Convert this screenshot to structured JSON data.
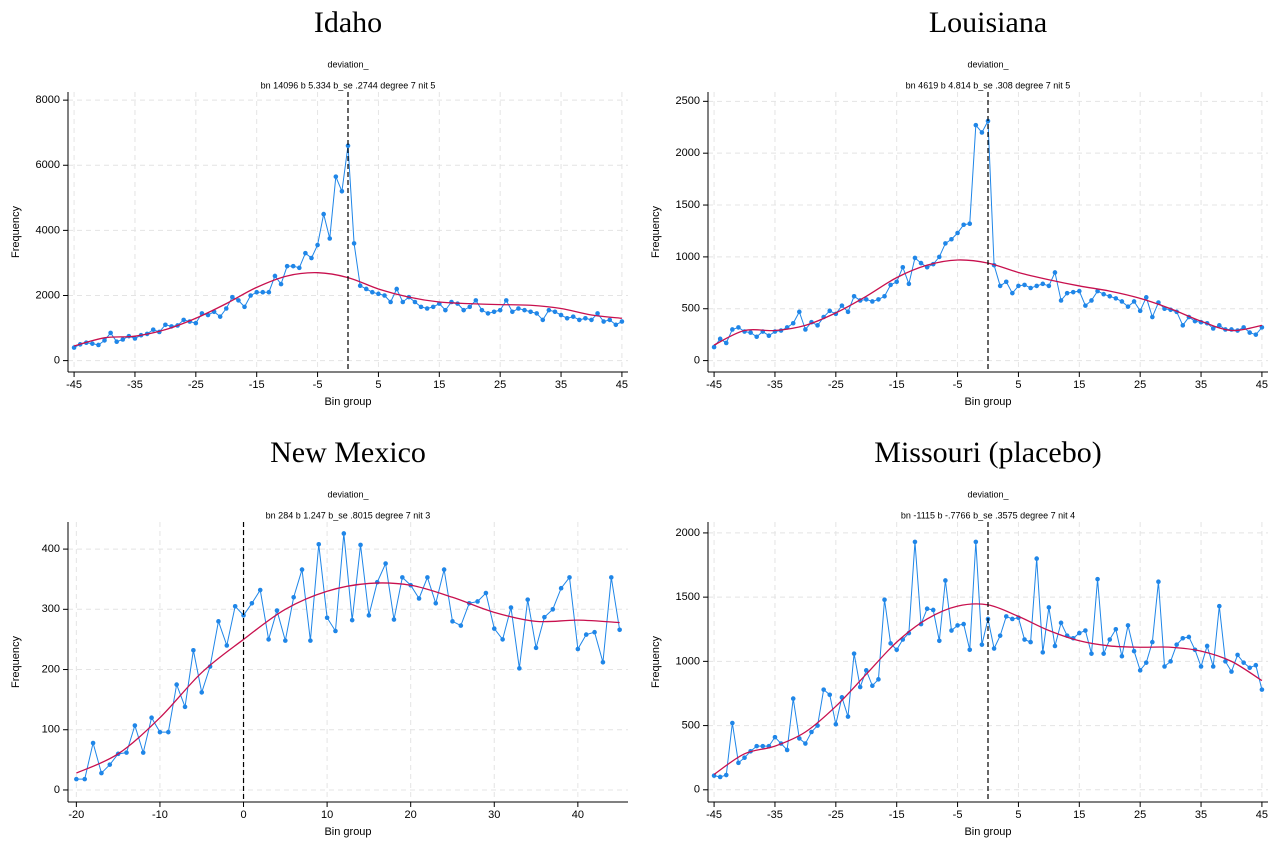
{
  "chart_data": [
    {
      "type": "line",
      "title": "Idaho",
      "subtitle": [
        "deviation_",
        "bn 14096 b 5.334 b_se .2744 degree 7 nit 5"
      ],
      "xlabel": "Bin group",
      "ylabel": "Frequency",
      "x": [
        -45,
        -44,
        -43,
        -42,
        -41,
        -40,
        -39,
        -38,
        -37,
        -36,
        -35,
        -34,
        -33,
        -32,
        -31,
        -30,
        -29,
        -28,
        -27,
        -26,
        -25,
        -24,
        -23,
        -22,
        -21,
        -20,
        -19,
        -18,
        -17,
        -16,
        -15,
        -14,
        -13,
        -12,
        -11,
        -10,
        -9,
        -8,
        -7,
        -6,
        -5,
        -4,
        -3,
        -2,
        -1,
        0,
        1,
        2,
        3,
        4,
        5,
        6,
        7,
        8,
        9,
        10,
        11,
        12,
        13,
        14,
        15,
        16,
        17,
        18,
        19,
        20,
        21,
        22,
        23,
        24,
        25,
        26,
        27,
        28,
        29,
        30,
        31,
        32,
        33,
        34,
        35,
        36,
        37,
        38,
        39,
        40,
        41,
        42,
        43,
        44,
        45
      ],
      "series": [
        {
          "color": "#1f86e8",
          "values": [
            400,
            500,
            550,
            520,
            480,
            620,
            850,
            580,
            650,
            750,
            680,
            780,
            820,
            950,
            880,
            1100,
            1050,
            1080,
            1250,
            1200,
            1150,
            1450,
            1400,
            1500,
            1350,
            1600,
            1950,
            1850,
            1650,
            2000,
            2100,
            2100,
            2100,
            2600,
            2350,
            2900,
            2900,
            2850,
            3300,
            3150,
            3550,
            4500,
            3750,
            5650,
            5200,
            6600,
            3600,
            2300,
            2200,
            2100,
            2050,
            2000,
            1800,
            2200,
            1800,
            1950,
            1800,
            1650,
            1600,
            1650,
            1750,
            1550,
            1800,
            1750,
            1550,
            1650,
            1850,
            1550,
            1450,
            1500,
            1550,
            1850,
            1500,
            1600,
            1550,
            1500,
            1450,
            1250,
            1550,
            1500,
            1400,
            1300,
            1350,
            1250,
            1300,
            1250,
            1450,
            1200,
            1250,
            1100,
            1200
          ]
        },
        {
          "color": "#c8104e",
          "x": [
            -45,
            -40,
            -35,
            -30,
            -25,
            -20,
            -15,
            -10,
            -5,
            0,
            5,
            10,
            15,
            20,
            25,
            30,
            35,
            40,
            45
          ],
          "values": [
            450,
            700,
            750,
            950,
            1300,
            1750,
            2250,
            2600,
            2700,
            2550,
            2200,
            1950,
            1800,
            1750,
            1720,
            1700,
            1600,
            1400,
            1300
          ]
        }
      ],
      "xlim": [
        -46,
        46
      ],
      "ylim": [
        -350,
        8250
      ],
      "xticks": [
        -45,
        -35,
        -25,
        -15,
        -5,
        5,
        15,
        25,
        35,
        45
      ],
      "yticks": [
        0,
        2000,
        4000,
        6000,
        8000
      ],
      "grid": true,
      "vline": 0
    },
    {
      "type": "line",
      "title": "Louisiana",
      "subtitle": [
        "deviation_",
        "bn 4619 b 4.814 b_se .308 degree 7 nit 5"
      ],
      "xlabel": "Bin group",
      "ylabel": "Frequency",
      "x": [
        -45,
        -44,
        -43,
        -42,
        -41,
        -40,
        -39,
        -38,
        -37,
        -36,
        -35,
        -34,
        -33,
        -32,
        -31,
        -30,
        -29,
        -28,
        -27,
        -26,
        -25,
        -24,
        -23,
        -22,
        -21,
        -20,
        -19,
        -18,
        -17,
        -16,
        -15,
        -14,
        -13,
        -12,
        -11,
        -10,
        -9,
        -8,
        -7,
        -6,
        -5,
        -4,
        -3,
        -2,
        -1,
        0,
        1,
        2,
        3,
        4,
        5,
        6,
        7,
        8,
        9,
        10,
        11,
        12,
        13,
        14,
        15,
        16,
        17,
        18,
        19,
        20,
        21,
        22,
        23,
        24,
        25,
        26,
        27,
        28,
        29,
        30,
        31,
        32,
        33,
        34,
        35,
        36,
        37,
        38,
        39,
        40,
        41,
        42,
        43,
        44,
        45
      ],
      "series": [
        {
          "color": "#1f86e8",
          "values": [
            130,
            210,
            170,
            300,
            320,
            280,
            270,
            230,
            280,
            240,
            280,
            290,
            320,
            360,
            470,
            300,
            370,
            340,
            420,
            480,
            450,
            530,
            470,
            620,
            580,
            590,
            570,
            590,
            620,
            730,
            760,
            900,
            740,
            990,
            940,
            900,
            930,
            1000,
            1130,
            1170,
            1230,
            1310,
            1320,
            2270,
            2200,
            2310,
            920,
            720,
            760,
            650,
            720,
            730,
            700,
            720,
            740,
            720,
            850,
            580,
            650,
            660,
            670,
            530,
            580,
            670,
            640,
            620,
            600,
            570,
            520,
            570,
            480,
            610,
            420,
            560,
            500,
            490,
            470,
            340,
            420,
            380,
            370,
            360,
            310,
            340,
            300,
            300,
            290,
            320,
            270,
            250,
            320
          ]
        },
        {
          "color": "#c8104e",
          "x": [
            -45,
            -40,
            -35,
            -30,
            -25,
            -20,
            -15,
            -10,
            -5,
            0,
            5,
            10,
            15,
            20,
            25,
            30,
            35,
            40,
            45
          ],
          "values": [
            150,
            290,
            290,
            340,
            460,
            620,
            800,
            920,
            970,
            940,
            850,
            780,
            720,
            670,
            600,
            500,
            380,
            290,
            340
          ]
        }
      ],
      "xlim": [
        -46,
        46
      ],
      "ylim": [
        -110,
        2590
      ],
      "xticks": [
        -45,
        -35,
        -25,
        -15,
        -5,
        5,
        15,
        25,
        35,
        45
      ],
      "yticks": [
        0,
        500,
        1000,
        1500,
        2000,
        2500
      ],
      "grid": true,
      "vline": 0
    },
    {
      "type": "line",
      "title": "New Mexico",
      "subtitle": [
        "deviation_",
        "bn 284 b 1.247 b_se .8015 degree 7 nit 3"
      ],
      "xlabel": "Bin group",
      "ylabel": "Frequency",
      "x": [
        -20,
        -19,
        -18,
        -17,
        -16,
        -15,
        -14,
        -13,
        -12,
        -11,
        -10,
        -9,
        -8,
        -7,
        -6,
        -5,
        -4,
        -3,
        -2,
        -1,
        0,
        1,
        2,
        3,
        4,
        5,
        6,
        7,
        8,
        9,
        10,
        11,
        12,
        13,
        14,
        15,
        16,
        17,
        18,
        19,
        20,
        21,
        22,
        23,
        24,
        25,
        26,
        27,
        28,
        29,
        30,
        31,
        32,
        33,
        34,
        35,
        36,
        37,
        38,
        39,
        40,
        41,
        42,
        43,
        44,
        45
      ],
      "series": [
        {
          "color": "#1f86e8",
          "values": [
            18,
            18,
            78,
            28,
            42,
            60,
            62,
            107,
            62,
            120,
            96,
            96,
            175,
            138,
            232,
            162,
            205,
            280,
            240,
            305,
            290,
            310,
            332,
            250,
            298,
            248,
            320,
            366,
            248,
            408,
            286,
            264,
            426,
            282,
            407,
            290,
            345,
            376,
            283,
            353,
            340,
            318,
            353,
            310,
            366,
            280,
            273,
            310,
            313,
            327,
            268,
            250,
            303,
            202,
            316,
            236,
            287,
            300,
            335,
            353,
            234,
            258,
            262,
            212,
            353,
            266
          ]
        },
        {
          "color": "#c8104e",
          "x": [
            -20,
            -15,
            -10,
            -5,
            0,
            5,
            10,
            15,
            20,
            25,
            30,
            35,
            40,
            45
          ],
          "values": [
            28,
            60,
            120,
            195,
            250,
            300,
            330,
            343,
            340,
            320,
            295,
            280,
            282,
            278
          ]
        }
      ],
      "xlim": [
        -21,
        46
      ],
      "ylim": [
        -20,
        445
      ],
      "xticks": [
        -20,
        -10,
        0,
        10,
        20,
        30,
        40
      ],
      "yticks": [
        0,
        100,
        200,
        300,
        400
      ],
      "grid": true,
      "vline": 0
    },
    {
      "type": "line",
      "title": "Missouri (placebo)",
      "subtitle": [
        "deviation_",
        "bn -1115 b -.7766 b_se .3575 degree 7 nit 4"
      ],
      "xlabel": "Bin group",
      "ylabel": "Frequency",
      "x": [
        -45,
        -44,
        -43,
        -42,
        -41,
        -40,
        -39,
        -38,
        -37,
        -36,
        -35,
        -34,
        -33,
        -32,
        -31,
        -30,
        -29,
        -28,
        -27,
        -26,
        -25,
        -24,
        -23,
        -22,
        -21,
        -20,
        -19,
        -18,
        -17,
        -16,
        -15,
        -14,
        -13,
        -12,
        -11,
        -10,
        -9,
        -8,
        -7,
        -6,
        -5,
        -4,
        -3,
        -2,
        -1,
        0,
        1,
        2,
        3,
        4,
        5,
        6,
        7,
        8,
        9,
        10,
        11,
        12,
        13,
        14,
        15,
        16,
        17,
        18,
        19,
        20,
        21,
        22,
        23,
        24,
        25,
        26,
        27,
        28,
        29,
        30,
        31,
        32,
        33,
        34,
        35,
        36,
        37,
        38,
        39,
        40,
        41,
        42,
        43,
        44,
        45
      ],
      "series": [
        {
          "color": "#1f86e8",
          "values": [
            110,
            100,
            115,
            520,
            210,
            250,
            300,
            340,
            340,
            340,
            410,
            360,
            310,
            710,
            400,
            360,
            450,
            500,
            780,
            740,
            510,
            720,
            570,
            1060,
            800,
            930,
            810,
            860,
            1480,
            1140,
            1090,
            1170,
            1220,
            1930,
            1290,
            1410,
            1400,
            1160,
            1630,
            1240,
            1280,
            1290,
            1090,
            1930,
            1130,
            1330,
            1100,
            1200,
            1350,
            1330,
            1340,
            1170,
            1150,
            1800,
            1070,
            1420,
            1120,
            1300,
            1200,
            1180,
            1220,
            1240,
            1060,
            1640,
            1060,
            1170,
            1250,
            1040,
            1280,
            1080,
            930,
            990,
            1150,
            1620,
            960,
            1000,
            1130,
            1180,
            1190,
            1090,
            960,
            1120,
            960,
            1430,
            1000,
            920,
            1050,
            990,
            950,
            970,
            780
          ]
        },
        {
          "color": "#c8104e",
          "x": [
            -45,
            -40,
            -35,
            -30,
            -25,
            -20,
            -15,
            -10,
            -5,
            0,
            5,
            10,
            15,
            20,
            25,
            30,
            35,
            40,
            45
          ],
          "values": [
            120,
            280,
            340,
            450,
            650,
            900,
            1150,
            1330,
            1430,
            1440,
            1350,
            1240,
            1160,
            1120,
            1110,
            1110,
            1080,
            1000,
            850
          ]
        }
      ],
      "xlim": [
        -46,
        46
      ],
      "ylim": [
        -95,
        2085
      ],
      "xticks": [
        -45,
        -35,
        -25,
        -15,
        -5,
        5,
        15,
        25,
        35,
        45
      ],
      "yticks": [
        0,
        500,
        1000,
        1500,
        2000
      ],
      "grid": true,
      "vline": 0
    }
  ]
}
